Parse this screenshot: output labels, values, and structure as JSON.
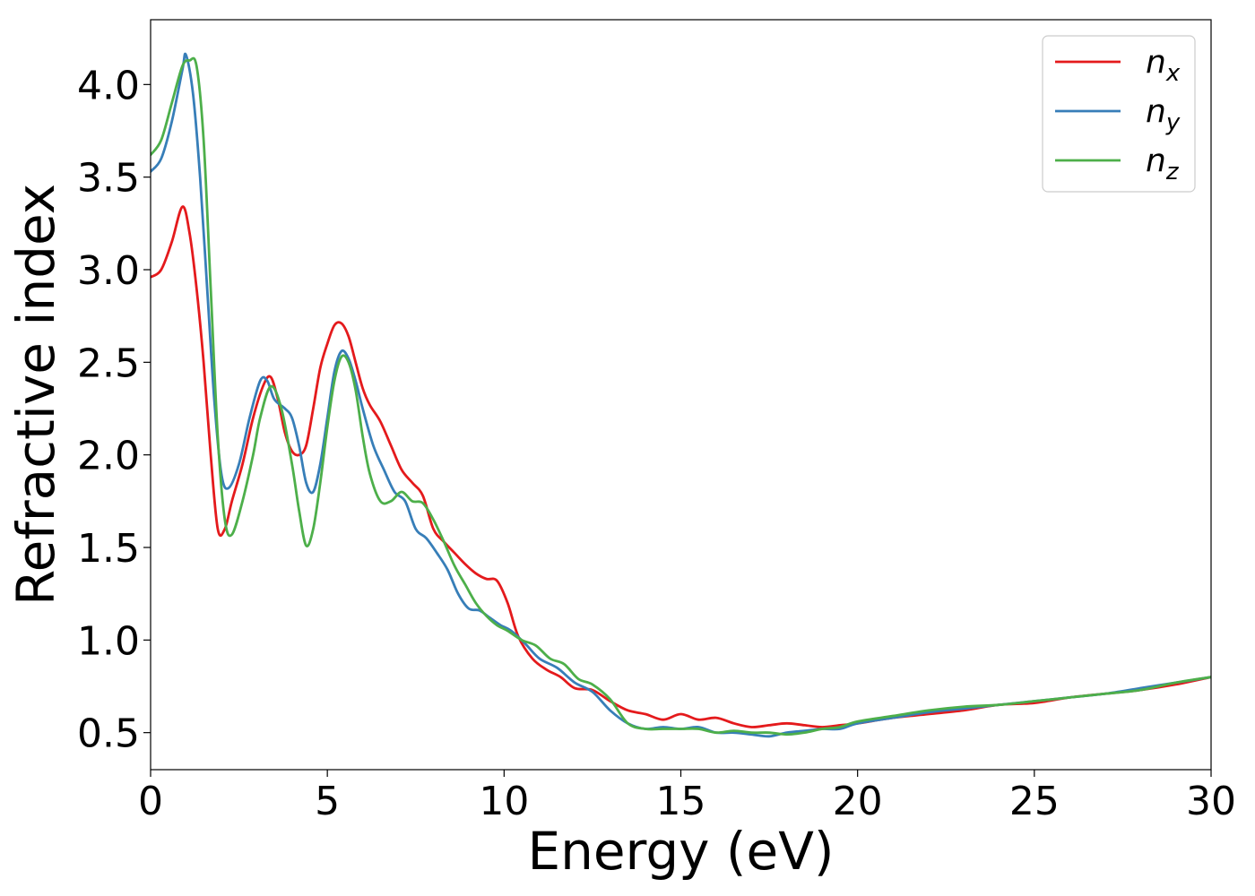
{
  "chart_data": {
    "type": "line",
    "xlabel": "Energy (eV)",
    "ylabel": "Refractive index",
    "xlim": [
      0,
      30
    ],
    "ylim": [
      0.3,
      4.35
    ],
    "xticks": [
      0,
      5,
      10,
      15,
      20,
      25,
      30
    ],
    "xtick_labels": [
      "0",
      "5",
      "10",
      "15",
      "20",
      "25",
      "30"
    ],
    "yticks": [
      0.5,
      1.0,
      1.5,
      2.0,
      2.5,
      3.0,
      3.5,
      4.0
    ],
    "ytick_labels": [
      "0.5",
      "1.0",
      "1.5",
      "2.0",
      "2.5",
      "3.0",
      "3.5",
      "4.0"
    ],
    "grid": false,
    "legend_position": "top-right",
    "series": [
      {
        "name": "n_x",
        "legend_base": "n",
        "legend_sub": "x",
        "color": "#e41a1c",
        "x": [
          0,
          0.3,
          0.6,
          0.9,
          1.1,
          1.3,
          1.5,
          1.7,
          1.9,
          2.1,
          2.3,
          2.6,
          2.9,
          3.2,
          3.4,
          3.6,
          3.8,
          4.0,
          4.2,
          4.4,
          4.6,
          4.8,
          5.0,
          5.2,
          5.4,
          5.6,
          5.8,
          6.0,
          6.2,
          6.5,
          6.8,
          7.1,
          7.4,
          7.7,
          8.0,
          8.3,
          8.6,
          8.9,
          9.2,
          9.5,
          9.8,
          10.1,
          10.4,
          10.8,
          11.2,
          11.6,
          12.0,
          12.5,
          13.0,
          13.5,
          14.0,
          14.5,
          15.0,
          15.5,
          16.0,
          16.5,
          17.0,
          17.5,
          18.0,
          18.5,
          19.0,
          19.5,
          20.0,
          21.0,
          22.0,
          23.0,
          24.0,
          25.0,
          26.0,
          27.0,
          28.0,
          29.0,
          30.0
        ],
        "y": [
          2.96,
          3.0,
          3.15,
          3.34,
          3.2,
          2.9,
          2.5,
          2.0,
          1.6,
          1.6,
          1.75,
          1.95,
          2.2,
          2.38,
          2.42,
          2.3,
          2.12,
          2.02,
          2.0,
          2.05,
          2.25,
          2.47,
          2.6,
          2.7,
          2.71,
          2.64,
          2.5,
          2.36,
          2.27,
          2.18,
          2.05,
          1.92,
          1.85,
          1.78,
          1.6,
          1.53,
          1.47,
          1.41,
          1.36,
          1.33,
          1.32,
          1.2,
          1.02,
          0.9,
          0.84,
          0.8,
          0.74,
          0.73,
          0.67,
          0.62,
          0.6,
          0.57,
          0.6,
          0.57,
          0.58,
          0.55,
          0.53,
          0.54,
          0.55,
          0.54,
          0.53,
          0.54,
          0.55,
          0.58,
          0.6,
          0.62,
          0.65,
          0.66,
          0.69,
          0.71,
          0.73,
          0.76,
          0.8
        ]
      },
      {
        "name": "n_y",
        "legend_base": "n",
        "legend_sub": "y",
        "color": "#377eb8",
        "x": [
          0,
          0.3,
          0.6,
          0.9,
          1.0,
          1.2,
          1.4,
          1.6,
          1.8,
          2.0,
          2.2,
          2.5,
          2.8,
          3.1,
          3.3,
          3.5,
          3.8,
          4.0,
          4.2,
          4.4,
          4.6,
          4.8,
          5.0,
          5.2,
          5.4,
          5.6,
          5.8,
          6.0,
          6.3,
          6.6,
          6.9,
          7.2,
          7.5,
          7.8,
          8.1,
          8.4,
          8.7,
          9.0,
          9.3,
          9.6,
          9.9,
          10.2,
          10.6,
          11.0,
          11.5,
          12.0,
          12.5,
          13.0,
          13.5,
          14.0,
          14.5,
          15.0,
          15.5,
          16.0,
          16.5,
          17.0,
          17.5,
          18.0,
          18.5,
          19.0,
          19.5,
          20.0,
          21.0,
          22.0,
          23.0,
          24.0,
          25.0,
          26.0,
          27.0,
          28.0,
          29.0,
          30.0
        ],
        "y": [
          3.53,
          3.6,
          3.8,
          4.08,
          4.16,
          3.95,
          3.5,
          2.9,
          2.3,
          1.9,
          1.82,
          1.95,
          2.2,
          2.4,
          2.4,
          2.3,
          2.25,
          2.2,
          2.05,
          1.85,
          1.8,
          1.95,
          2.2,
          2.45,
          2.56,
          2.52,
          2.4,
          2.25,
          2.05,
          1.92,
          1.8,
          1.75,
          1.6,
          1.55,
          1.47,
          1.38,
          1.25,
          1.17,
          1.16,
          1.12,
          1.08,
          1.05,
          0.98,
          0.9,
          0.85,
          0.77,
          0.72,
          0.62,
          0.55,
          0.52,
          0.53,
          0.52,
          0.53,
          0.5,
          0.5,
          0.49,
          0.48,
          0.5,
          0.51,
          0.52,
          0.52,
          0.55,
          0.58,
          0.61,
          0.63,
          0.65,
          0.67,
          0.69,
          0.71,
          0.74,
          0.77,
          0.8
        ]
      },
      {
        "name": "n_z",
        "legend_base": "n",
        "legend_sub": "z",
        "color": "#4daf4a",
        "x": [
          0,
          0.3,
          0.6,
          0.9,
          1.1,
          1.3,
          1.5,
          1.7,
          1.9,
          2.1,
          2.3,
          2.6,
          2.9,
          3.1,
          3.4,
          3.7,
          4.0,
          4.2,
          4.4,
          4.6,
          4.8,
          5.0,
          5.2,
          5.4,
          5.6,
          5.8,
          6.0,
          6.2,
          6.5,
          6.8,
          7.1,
          7.4,
          7.7,
          8.0,
          8.3,
          8.6,
          8.9,
          9.2,
          9.5,
          9.8,
          10.1,
          10.5,
          10.9,
          11.3,
          11.7,
          12.1,
          12.5,
          13.0,
          13.5,
          14.0,
          14.5,
          15.0,
          15.5,
          16.0,
          16.5,
          17.0,
          17.5,
          18.0,
          18.5,
          19.0,
          19.5,
          20.0,
          21.0,
          22.0,
          23.0,
          24.0,
          25.0,
          26.0,
          27.0,
          28.0,
          29.0,
          30.0
        ],
        "y": [
          3.62,
          3.7,
          3.9,
          4.1,
          4.13,
          4.1,
          3.7,
          2.9,
          2.1,
          1.65,
          1.57,
          1.75,
          2.0,
          2.2,
          2.37,
          2.25,
          1.95,
          1.7,
          1.51,
          1.6,
          1.85,
          2.15,
          2.4,
          2.53,
          2.5,
          2.35,
          2.1,
          1.9,
          1.75,
          1.75,
          1.8,
          1.75,
          1.74,
          1.65,
          1.53,
          1.4,
          1.3,
          1.2,
          1.13,
          1.08,
          1.05,
          1.0,
          0.97,
          0.9,
          0.87,
          0.79,
          0.76,
          0.68,
          0.55,
          0.52,
          0.52,
          0.52,
          0.52,
          0.5,
          0.51,
          0.5,
          0.5,
          0.49,
          0.5,
          0.52,
          0.53,
          0.56,
          0.59,
          0.62,
          0.64,
          0.65,
          0.67,
          0.69,
          0.71,
          0.73,
          0.77,
          0.8
        ]
      }
    ]
  }
}
